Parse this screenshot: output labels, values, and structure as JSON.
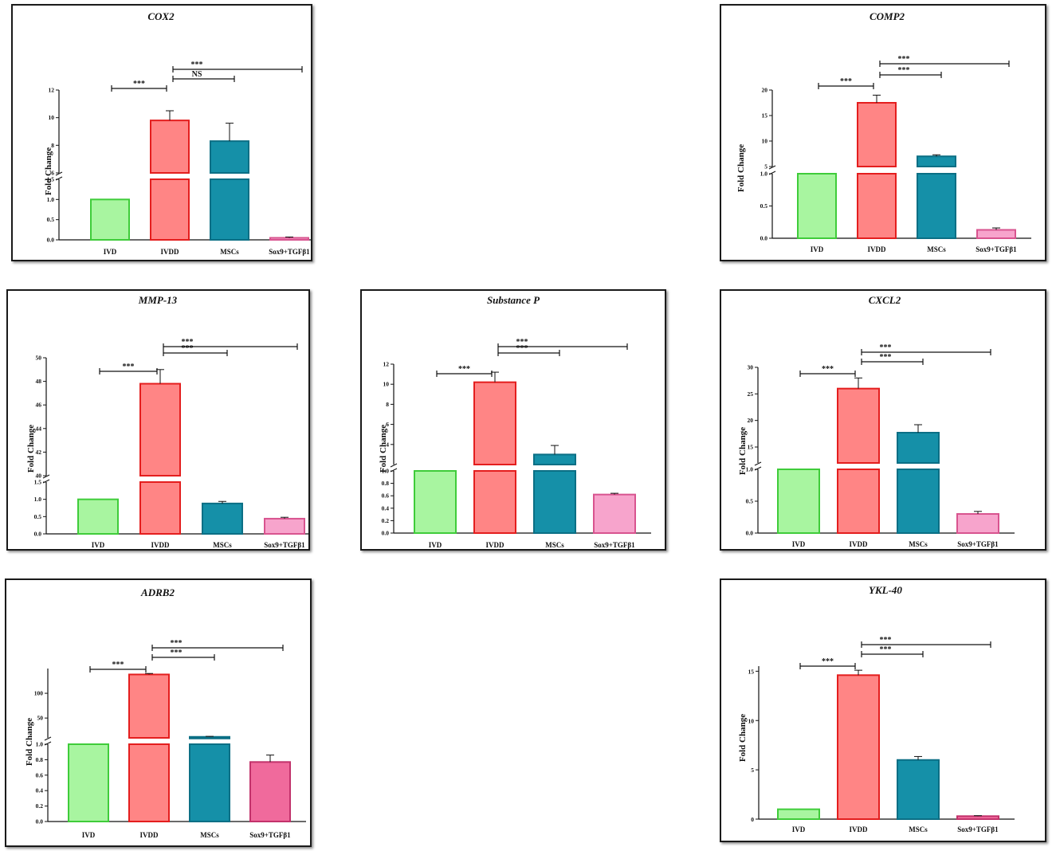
{
  "colors": {
    "IVD": {
      "fill": "#a8f5a0",
      "stroke": "#3fcc3a"
    },
    "IVDD": {
      "fill": "#ff8585",
      "stroke": "#e41e1e"
    },
    "MSCs": {
      "fill": "#1590a8",
      "stroke": "#0b6f85"
    },
    "Sox9_light": {
      "fill": "#f7a4cc",
      "stroke": "#d8548f"
    },
    "Sox9_dark": {
      "fill": "#f06a9c",
      "stroke": "#c2326b"
    }
  },
  "chart_data": [
    {
      "id": "cox2",
      "type": "bar",
      "title": "COX2",
      "ylabel": "Fold Change",
      "categories": [
        "IVD",
        "IVDD",
        "MSCs",
        "Sox9+TGFβ1"
      ],
      "values": [
        1.0,
        9.8,
        8.3,
        0.05
      ],
      "errors": [
        0,
        0.7,
        1.3,
        0.02
      ],
      "sox9_color": "light",
      "y_axis": {
        "broken": true,
        "lower": {
          "min": 0,
          "max": 1.5,
          "ticks": [
            "0.0",
            "0.5",
            "1.0",
            "1.5"
          ]
        },
        "upper": {
          "min": 6,
          "max": 12,
          "ticks": [
            "6",
            "8",
            "10",
            "12"
          ]
        }
      },
      "comparisons": [
        {
          "from": 0,
          "to": 1,
          "label": "***"
        },
        {
          "from": 1,
          "to": 2,
          "label": "NS"
        },
        {
          "from": 1,
          "to": 3,
          "label": "***"
        }
      ]
    },
    {
      "id": "comp2",
      "type": "bar",
      "title": "COMP2",
      "ylabel": "Fold Change",
      "categories": [
        "IVD",
        "IVDD",
        "MSCs",
        "Sox9+TGFβ1"
      ],
      "values": [
        1.0,
        17.5,
        7.0,
        0.13
      ],
      "errors": [
        0,
        1.5,
        0.3,
        0.03
      ],
      "sox9_color": "light",
      "y_axis": {
        "broken": true,
        "lower": {
          "min": 0,
          "max": 1.0,
          "ticks": [
            "0.0",
            "0.5",
            "1.0"
          ]
        },
        "upper": {
          "min": 5,
          "max": 20,
          "ticks": [
            "5",
            "10",
            "15",
            "20"
          ]
        }
      },
      "comparisons": [
        {
          "from": 0,
          "to": 1,
          "label": "***"
        },
        {
          "from": 1,
          "to": 2,
          "label": "***"
        },
        {
          "from": 1,
          "to": 3,
          "label": "***"
        }
      ]
    },
    {
      "id": "mmp13",
      "type": "bar",
      "title": "MMP-13",
      "ylabel": "Fold Change",
      "categories": [
        "IVD",
        "IVDD",
        "MSCs",
        "Sox9+TGFβ1"
      ],
      "values": [
        1.0,
        47.8,
        0.88,
        0.44
      ],
      "errors": [
        0,
        1.2,
        0.06,
        0.04
      ],
      "sox9_color": "light",
      "y_axis": {
        "broken": true,
        "lower": {
          "min": 0,
          "max": 1.5,
          "ticks": [
            "0.0",
            "0.5",
            "1.0",
            "1.5"
          ]
        },
        "upper": {
          "min": 40,
          "max": 50,
          "ticks": [
            "40",
            "42",
            "44",
            "46",
            "48",
            "50"
          ]
        }
      },
      "comparisons": [
        {
          "from": 0,
          "to": 1,
          "label": "***"
        },
        {
          "from": 1,
          "to": 2,
          "label": "***"
        },
        {
          "from": 1,
          "to": 3,
          "label": "***"
        }
      ]
    },
    {
      "id": "substance_p",
      "type": "bar",
      "title": "Substance P",
      "ylabel": "Fold Change",
      "categories": [
        "IVD",
        "IVDD",
        "MSCs",
        "Sox9+TGFβ1"
      ],
      "values": [
        1.0,
        10.2,
        3.0,
        0.62
      ],
      "errors": [
        0,
        1.0,
        0.9,
        0.02
      ],
      "sox9_color": "light",
      "y_axis": {
        "broken": true,
        "lower": {
          "min": 0,
          "max": 1.0,
          "ticks": [
            "0.0",
            "0.2",
            "0.4",
            "0.6",
            "0.8",
            "1.0"
          ]
        },
        "upper": {
          "min": 2,
          "max": 12,
          "ticks": [
            "4",
            "6",
            "8",
            "10",
            "12"
          ]
        }
      },
      "comparisons": [
        {
          "from": 0,
          "to": 1,
          "label": "***"
        },
        {
          "from": 1,
          "to": 2,
          "label": "***"
        },
        {
          "from": 1,
          "to": 3,
          "label": "***"
        }
      ]
    },
    {
      "id": "cxcl2",
      "type": "bar",
      "title": "CXCL2",
      "ylabel": "Fold Change",
      "categories": [
        "IVD",
        "IVDD",
        "MSCs",
        "Sox9+TGFβ1"
      ],
      "values": [
        1.0,
        26.0,
        17.7,
        0.3
      ],
      "errors": [
        0,
        2.0,
        1.5,
        0.04
      ],
      "sox9_color": "light",
      "y_axis": {
        "broken": true,
        "lower": {
          "min": 0,
          "max": 1.0,
          "ticks": [
            "0.0",
            "0.5",
            "1.0"
          ]
        },
        "upper": {
          "min": 12,
          "max": 30,
          "ticks": [
            "15",
            "20",
            "25",
            "30"
          ]
        }
      },
      "comparisons": [
        {
          "from": 0,
          "to": 1,
          "label": "***"
        },
        {
          "from": 1,
          "to": 2,
          "label": "***"
        },
        {
          "from": 1,
          "to": 3,
          "label": "***"
        }
      ]
    },
    {
      "id": "adrb2",
      "type": "bar",
      "title": "ADRB2",
      "ylabel": "Fold Change",
      "categories": [
        "IVD",
        "IVDD",
        "MSCs",
        "Sox9+TGFβ1"
      ],
      "values": [
        1.0,
        138,
        12,
        0.77
      ],
      "errors": [
        0,
        2,
        1,
        0.09
      ],
      "sox9_color": "dark",
      "y_axis": {
        "broken": true,
        "lower": {
          "min": 0,
          "max": 1.0,
          "ticks": [
            "0.0",
            "0.2",
            "0.4",
            "0.6",
            "0.8",
            "1.0"
          ]
        },
        "upper": {
          "min": 10,
          "max": 150,
          "ticks": [
            "50",
            "100"
          ]
        }
      },
      "comparisons": [
        {
          "from": 0,
          "to": 1,
          "label": "***"
        },
        {
          "from": 1,
          "to": 2,
          "label": "***"
        },
        {
          "from": 1,
          "to": 3,
          "label": "***"
        }
      ]
    },
    {
      "id": "ykl40",
      "type": "bar",
      "title": "YKL-40",
      "ylabel": "Fold Change",
      "categories": [
        "IVD",
        "IVDD",
        "MSCs",
        "Sox9+TGFβ1"
      ],
      "values": [
        1.0,
        14.6,
        6.0,
        0.3
      ],
      "errors": [
        0,
        0.5,
        0.35,
        0.05
      ],
      "sox9_color": "dark",
      "y_axis": {
        "broken": false,
        "min": 0,
        "max": 16,
        "ticks": [
          "0",
          "5",
          "10",
          "15"
        ],
        "tick_values": [
          0,
          5,
          10,
          15
        ]
      },
      "comparisons": [
        {
          "from": 0,
          "to": 1,
          "label": "***"
        },
        {
          "from": 1,
          "to": 2,
          "label": "***"
        },
        {
          "from": 1,
          "to": 3,
          "label": "***"
        }
      ]
    }
  ]
}
